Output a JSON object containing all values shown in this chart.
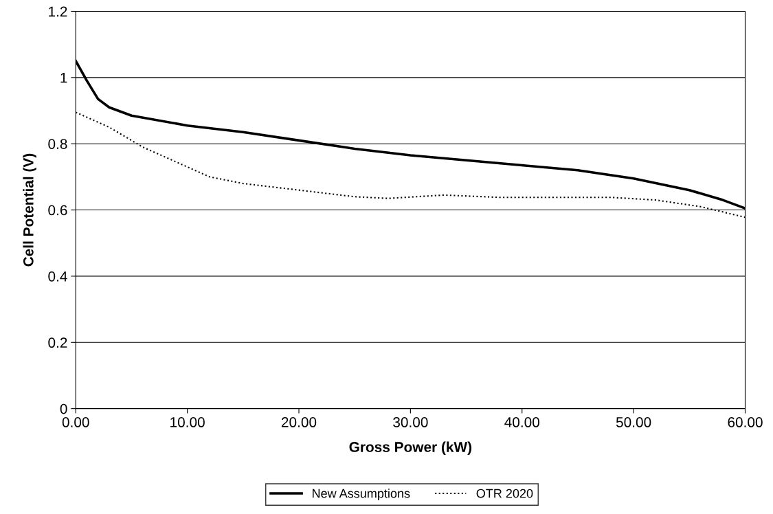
{
  "chart_data": {
    "type": "line",
    "xlabel": "Gross Power (kW)",
    "ylabel": "Cell Potential (V)",
    "xlim": [
      0,
      60
    ],
    "xticks": [
      {
        "value": 0,
        "label": "0.00"
      },
      {
        "value": 10,
        "label": "10.00"
      },
      {
        "value": 20,
        "label": "20.00"
      },
      {
        "value": 30,
        "label": "30.00"
      },
      {
        "value": 40,
        "label": "40.00"
      },
      {
        "value": 50,
        "label": "50.00"
      },
      {
        "value": 60,
        "label": "60.00"
      }
    ],
    "ylim": [
      0,
      1.2
    ],
    "yticks": [
      0,
      0.2,
      0.4,
      0.6,
      0.8,
      1,
      1.2
    ],
    "grid": "y",
    "legend": "bottom",
    "series": [
      {
        "name": "New Assumptions",
        "color": "#000000",
        "line_style": "solid",
        "x": [
          0,
          1,
          2,
          3,
          5,
          10,
          15,
          20,
          25,
          30,
          35,
          40,
          45,
          50,
          55,
          58,
          60
        ],
        "values": [
          1.05,
          0.99,
          0.935,
          0.91,
          0.885,
          0.855,
          0.835,
          0.81,
          0.785,
          0.765,
          0.75,
          0.735,
          0.72,
          0.695,
          0.66,
          0.63,
          0.605
        ]
      },
      {
        "name": "OTR 2020",
        "color": "#000000",
        "line_style": "dotted",
        "x": [
          0,
          3,
          6,
          10,
          12,
          15,
          20,
          25,
          28,
          33,
          38,
          45,
          48,
          52,
          56,
          60
        ],
        "values": [
          0.895,
          0.85,
          0.79,
          0.73,
          0.7,
          0.68,
          0.66,
          0.64,
          0.635,
          0.645,
          0.638,
          0.638,
          0.638,
          0.63,
          0.61,
          0.578
        ]
      }
    ]
  }
}
